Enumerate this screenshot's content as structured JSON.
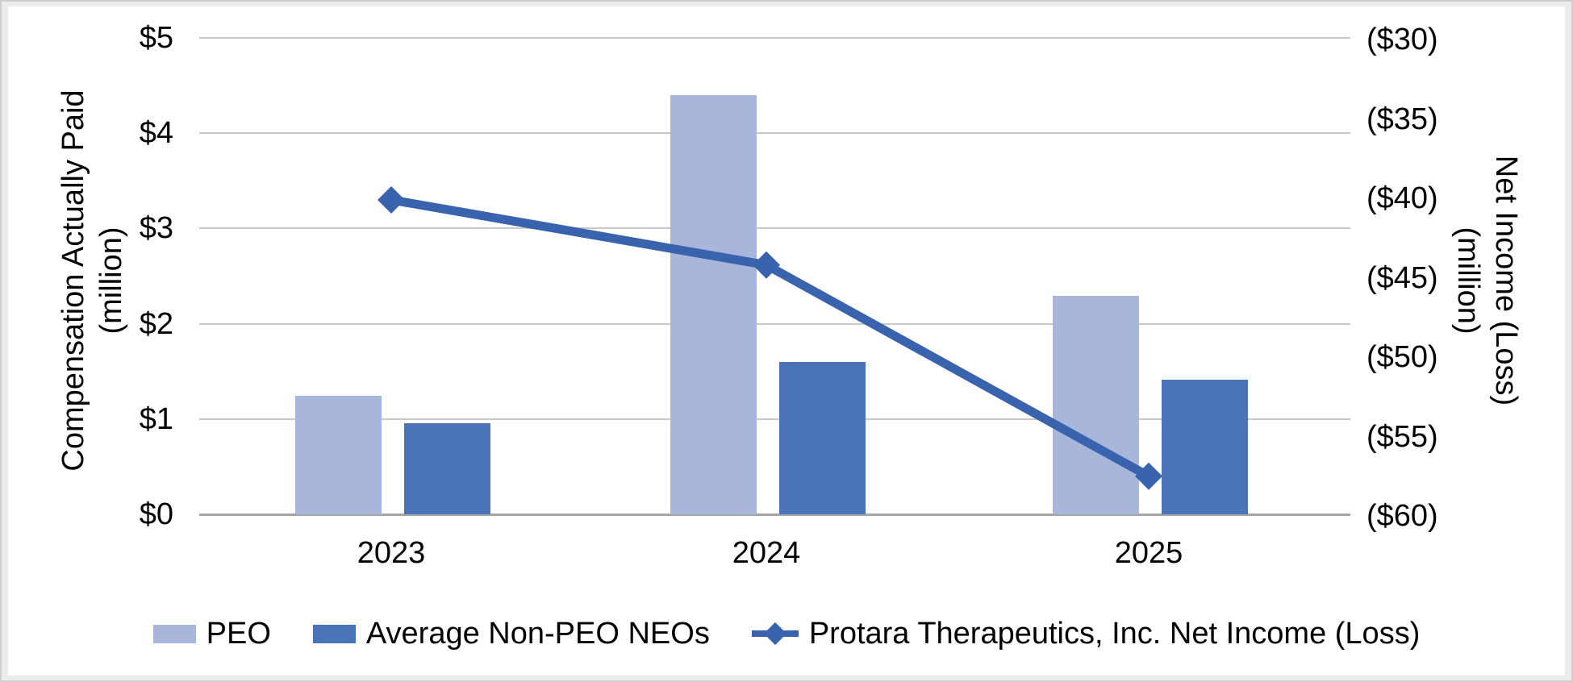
{
  "chart_data": {
    "type": "combo",
    "categories": [
      "2023",
      "2024",
      "2025"
    ],
    "series": [
      {
        "name": "PEO",
        "type": "bar",
        "axis": "left",
        "color": "#a9b6db",
        "values": [
          1.24,
          4.4,
          2.29
        ]
      },
      {
        "name": "Average Non-PEO NEOs",
        "type": "bar",
        "axis": "left",
        "color": "#4b73b8",
        "values": [
          0.96,
          1.6,
          1.41
        ]
      },
      {
        "name": "Protara Therapeutics, Inc. Net Income (Loss)",
        "type": "line",
        "axis": "right",
        "color": "#3a63ae",
        "marker": "diamond",
        "values": [
          -40.2,
          -44.3,
          -57.6
        ]
      }
    ],
    "left_axis": {
      "title": "Compensation Actually Paid (million)",
      "title_lines": [
        "Compensation Actually Paid",
        "(million)"
      ],
      "min": 0,
      "max": 5,
      "tick_step": 1,
      "tick_labels": [
        "$5",
        "$4",
        "$3",
        "$2",
        "$1",
        "$0"
      ]
    },
    "right_axis": {
      "title": "Net Income (Loss) (million)",
      "title_lines": [
        "Net Income (Loss)",
        "(million)"
      ],
      "min": -60,
      "max": -30,
      "tick_step": 5,
      "tick_labels": [
        "($30)",
        "($35)",
        "($40)",
        "($45)",
        "($50)",
        "($55)",
        "($60)"
      ]
    },
    "x_axis": {
      "labels": [
        "2023",
        "2024",
        "2025"
      ]
    },
    "legend": {
      "position": "bottom",
      "entries": [
        "PEO",
        "Average Non-PEO NEOs",
        "Protara Therapeutics, Inc. Net Income (Loss)"
      ]
    },
    "grid": true,
    "colors": {
      "gridline": "#c9c9c9",
      "axis_line": "#a6a6a6",
      "background": "#ffffff",
      "frame": "#ececec",
      "text": "#000000"
    }
  }
}
